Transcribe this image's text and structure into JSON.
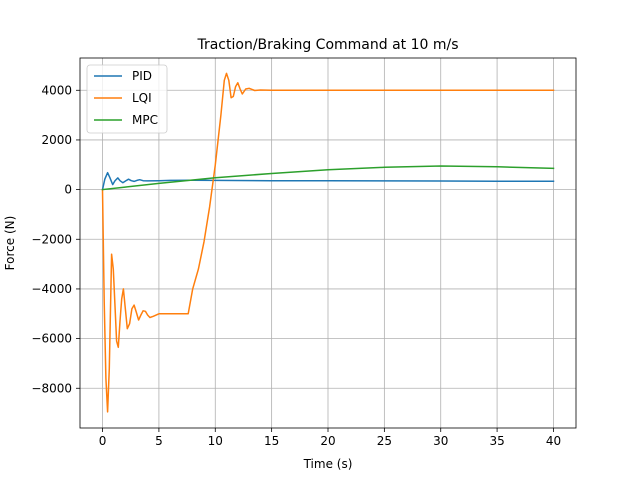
{
  "chart_data": {
    "type": "line",
    "title": "Traction/Braking Command at 10 m/s",
    "xlabel": "Time (s)",
    "ylabel": "Force (N)",
    "xlim": [
      -2,
      42
    ],
    "ylim": [
      -9600,
      5300
    ],
    "xticks": [
      0,
      5,
      10,
      15,
      20,
      25,
      30,
      35,
      40
    ],
    "yticks": [
      -8000,
      -6000,
      -4000,
      -2000,
      0,
      2000,
      4000
    ],
    "grid": true,
    "legend_position": "top-left",
    "series": [
      {
        "name": "PID",
        "color": "#1f77b4",
        "x": [
          0,
          0.2,
          0.45,
          0.65,
          0.9,
          1.1,
          1.35,
          1.55,
          1.8,
          2.05,
          2.3,
          2.55,
          2.8,
          3.05,
          3.3,
          3.6,
          4,
          5,
          6,
          8,
          10,
          15,
          20,
          25,
          30,
          35,
          40
        ],
        "y": [
          0,
          420,
          680,
          480,
          200,
          350,
          470,
          360,
          280,
          350,
          420,
          360,
          330,
          370,
          400,
          360,
          350,
          360,
          370,
          375,
          370,
          360,
          355,
          350,
          345,
          340,
          335
        ]
      },
      {
        "name": "LQI",
        "color": "#ff7f0e",
        "x": [
          0,
          0.15,
          0.3,
          0.45,
          0.6,
          0.8,
          0.95,
          1.1,
          1.25,
          1.4,
          1.55,
          1.7,
          1.85,
          2,
          2.2,
          2.4,
          2.6,
          2.8,
          3,
          3.2,
          3.4,
          3.6,
          3.8,
          4,
          4.2,
          4.5,
          5,
          6,
          7,
          7.6,
          8,
          8.5,
          9,
          9.5,
          10,
          10.5,
          10.8,
          11,
          11.2,
          11.4,
          11.6,
          11.8,
          12,
          12.2,
          12.4,
          12.7,
          13,
          13.5,
          14,
          15,
          20,
          25,
          30,
          35,
          40
        ],
        "y": [
          0,
          -4500,
          -7600,
          -8950,
          -7200,
          -2600,
          -3200,
          -4600,
          -6100,
          -6350,
          -5300,
          -4400,
          -4000,
          -4700,
          -5600,
          -5400,
          -4800,
          -4650,
          -4950,
          -5250,
          -5050,
          -4880,
          -4900,
          -5050,
          -5150,
          -5100,
          -5000,
          -5000,
          -5000,
          -5000,
          -4000,
          -3200,
          -2100,
          -700,
          1000,
          3000,
          4400,
          4680,
          4400,
          3700,
          3750,
          4150,
          4300,
          4050,
          3850,
          4050,
          4080,
          3990,
          4010,
          4000,
          4000,
          4000,
          4000,
          4000,
          4000
        ]
      },
      {
        "name": "MPC",
        "color": "#2ca02c",
        "x": [
          0,
          2,
          5,
          10,
          15,
          20,
          25,
          30,
          35,
          40
        ],
        "y": [
          0,
          100,
          250,
          480,
          650,
          800,
          900,
          950,
          920,
          860
        ]
      }
    ]
  }
}
